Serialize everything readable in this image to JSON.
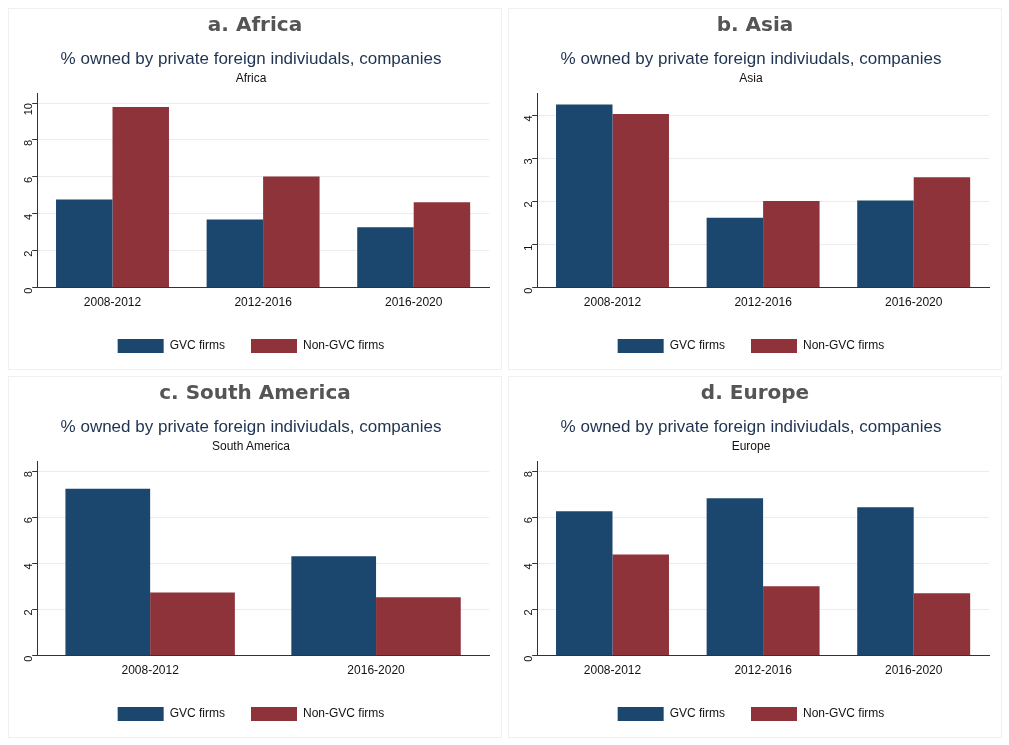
{
  "chart_data": [
    {
      "type": "bar",
      "title": "a. Africa",
      "subtitle": "% owned by private foreign indiviudals, companies",
      "annotations": [
        "Africa"
      ],
      "categories": [
        "2008-2012",
        "2012-2016",
        "2016-2020"
      ],
      "series": [
        {
          "name": "GVC firms",
          "color": "#1b466d",
          "values": [
            4.77,
            3.69,
            3.27
          ]
        },
        {
          "name": "Non-GVC firms",
          "color": "#8f333b",
          "values": [
            9.79,
            6.02,
            4.63
          ]
        }
      ],
      "ylim": [
        0,
        10.5
      ],
      "yticks": [
        0,
        2,
        4,
        6,
        8,
        10
      ],
      "grid": "y",
      "legend": "bottom"
    },
    {
      "type": "bar",
      "title": "b. Asia",
      "subtitle": "% owned by private foreign indiviudals, companies",
      "annotations": [
        "Asia"
      ],
      "categories": [
        "2008-2012",
        "2012-2016",
        "2016-2020"
      ],
      "series": [
        {
          "name": "GVC firms",
          "color": "#1b466d",
          "values": [
            4.25,
            1.62,
            2.02
          ]
        },
        {
          "name": "Non-GVC firms",
          "color": "#8f333b",
          "values": [
            4.03,
            2.01,
            2.56
          ]
        }
      ],
      "ylim": [
        0,
        4.5
      ],
      "yticks": [
        0,
        1,
        2,
        3,
        4
      ],
      "grid": "y",
      "legend": "bottom"
    },
    {
      "type": "bar",
      "title": "c. South America",
      "subtitle": "% owned by private foreign indiviudals, companies",
      "annotations": [
        "South America"
      ],
      "categories": [
        "2008-2012",
        "2016-2020"
      ],
      "series": [
        {
          "name": "GVC firms",
          "color": "#1b466d",
          "values": [
            7.23,
            4.31
          ]
        },
        {
          "name": "Non-GVC firms",
          "color": "#8f333b",
          "values": [
            2.74,
            2.53
          ]
        }
      ],
      "ylim": [
        0,
        8.4
      ],
      "yticks": [
        0,
        2,
        4,
        6,
        8
      ],
      "grid": "y",
      "legend": "bottom"
    },
    {
      "type": "bar",
      "title": "d. Europe",
      "subtitle": "% owned by private foreign indiviudals, companies",
      "annotations": [
        "Europe"
      ],
      "categories": [
        "2008-2012",
        "2012-2016",
        "2016-2020"
      ],
      "series": [
        {
          "name": "GVC firms",
          "color": "#1b466d",
          "values": [
            6.26,
            6.82,
            6.43
          ]
        },
        {
          "name": "Non-GVC firms",
          "color": "#8f333b",
          "values": [
            4.38,
            3.01,
            2.7
          ]
        }
      ],
      "ylim": [
        0,
        8.4
      ],
      "yticks": [
        0,
        2,
        4,
        6,
        8
      ],
      "grid": "y",
      "legend": "bottom"
    }
  ]
}
